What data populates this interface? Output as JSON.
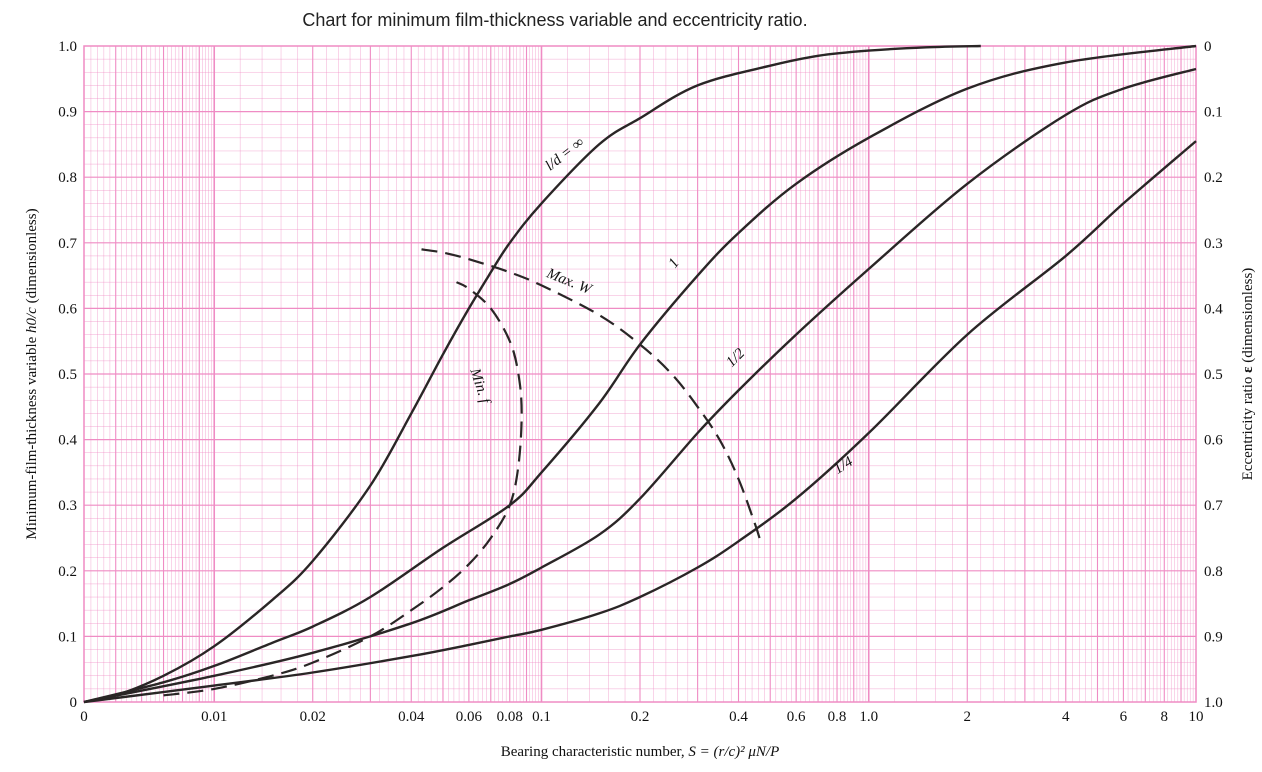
{
  "chart_data": {
    "type": "line",
    "title": "Chart for minimum film-thickness variable and eccentricity ratio.",
    "xlabel": {
      "prefix": "Bearing characteristic number, ",
      "formula": "S = (r/c)² μN/P"
    },
    "ylabel": {
      "prefix": "Minimum-film-thickness variable ",
      "formula": "h0/c",
      "suffix": " (dimensionless)"
    },
    "y2label": {
      "prefix": "Eccentricity ratio ",
      "symbol": "ε",
      "suffix": " (dimensionless)"
    },
    "x_scale": "log (0 at left edge, 0.004 to 10)",
    "xlim": [
      0,
      10
    ],
    "ylim": [
      0,
      1.0
    ],
    "y2lim": [
      1.0,
      0
    ],
    "grid": true,
    "grid_color": "#ef8cc4",
    "curve_color": "#2a2626",
    "x_ticks": [
      "0",
      "0.01",
      "0.02",
      "0.04",
      "0.06",
      "0.08",
      "0.1",
      "0.2",
      "0.4",
      "0.6",
      "0.8",
      "1.0",
      "2",
      "4",
      "6",
      "8",
      "10"
    ],
    "y_ticks": [
      "0",
      "0.1",
      "0.2",
      "0.3",
      "0.4",
      "0.5",
      "0.6",
      "0.7",
      "0.8",
      "0.9",
      "1.0"
    ],
    "y2_ticks": [
      "1.0",
      "0.9",
      "0.8",
      "0.7",
      "0.6",
      "0.5",
      "0.4",
      "0.3",
      "0.2",
      "0.1",
      "0"
    ],
    "series": [
      {
        "name": "l/d = ∞",
        "style": "solid",
        "x": [
          0.004,
          0.005,
          0.007,
          0.01,
          0.015,
          0.02,
          0.03,
          0.04,
          0.05,
          0.06,
          0.07,
          0.08,
          0.1,
          0.15,
          0.2,
          0.3,
          0.5,
          0.7,
          1.0,
          1.5,
          2.2
        ],
        "y": [
          0.0,
          0.01,
          0.04,
          0.085,
          0.155,
          0.215,
          0.33,
          0.44,
          0.53,
          0.6,
          0.655,
          0.7,
          0.76,
          0.85,
          0.89,
          0.94,
          0.97,
          0.985,
          0.993,
          0.998,
          1.0
        ]
      },
      {
        "name": "1",
        "style": "solid",
        "x": [
          0.004,
          0.007,
          0.01,
          0.015,
          0.02,
          0.03,
          0.05,
          0.08,
          0.1,
          0.15,
          0.2,
          0.3,
          0.4,
          0.6,
          1.0,
          2.0,
          4.0,
          10.0
        ],
        "y": [
          0.0,
          0.03,
          0.055,
          0.09,
          0.115,
          0.16,
          0.235,
          0.3,
          0.35,
          0.455,
          0.545,
          0.65,
          0.715,
          0.79,
          0.86,
          0.935,
          0.975,
          1.0
        ]
      },
      {
        "name": "1/2",
        "style": "solid",
        "x": [
          0.004,
          0.01,
          0.02,
          0.04,
          0.06,
          0.08,
          0.1,
          0.15,
          0.2,
          0.3,
          0.4,
          0.6,
          1.0,
          2.0,
          4.0,
          6.0,
          10.0
        ],
        "y": [
          0.0,
          0.04,
          0.075,
          0.12,
          0.155,
          0.18,
          0.205,
          0.255,
          0.31,
          0.41,
          0.475,
          0.56,
          0.66,
          0.79,
          0.895,
          0.935,
          0.965
        ]
      },
      {
        "name": "1/4",
        "style": "solid",
        "x": [
          0.004,
          0.01,
          0.02,
          0.04,
          0.06,
          0.08,
          0.1,
          0.15,
          0.2,
          0.3,
          0.4,
          0.6,
          1.0,
          2.0,
          4.0,
          6.0,
          10.0
        ],
        "y": [
          0.0,
          0.025,
          0.045,
          0.07,
          0.087,
          0.1,
          0.11,
          0.135,
          0.16,
          0.205,
          0.245,
          0.31,
          0.41,
          0.56,
          0.68,
          0.76,
          0.855
        ]
      },
      {
        "name": "Max. W",
        "style": "dashed",
        "x": [
          0.043,
          0.05,
          0.06,
          0.08,
          0.1,
          0.15,
          0.2,
          0.25,
          0.3,
          0.35,
          0.4,
          0.45,
          0.47
        ],
        "y": [
          0.69,
          0.685,
          0.675,
          0.655,
          0.635,
          0.59,
          0.545,
          0.5,
          0.45,
          0.4,
          0.34,
          0.27,
          0.24
        ]
      },
      {
        "name": "Min. f",
        "style": "dashed",
        "x": [
          0.007,
          0.01,
          0.015,
          0.02,
          0.03,
          0.04,
          0.05,
          0.06,
          0.07,
          0.08,
          0.085,
          0.087,
          0.085,
          0.08,
          0.07,
          0.06,
          0.055
        ],
        "y": [
          0.01,
          0.02,
          0.04,
          0.06,
          0.1,
          0.14,
          0.175,
          0.21,
          0.25,
          0.3,
          0.36,
          0.44,
          0.5,
          0.55,
          0.6,
          0.63,
          0.64
        ]
      }
    ],
    "annotations": [
      {
        "text": "l/d = ∞",
        "series": "l/d = ∞"
      },
      {
        "text": "1",
        "series": "1"
      },
      {
        "text": "1/2",
        "series": "1/2"
      },
      {
        "text": "1/4",
        "series": "1/4"
      },
      {
        "text": "Max. W",
        "series": "Max. W"
      },
      {
        "text": "Min. f",
        "series": "Min. f"
      }
    ]
  }
}
